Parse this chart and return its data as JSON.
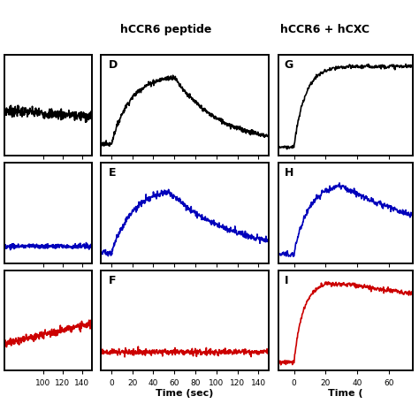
{
  "title_col1": "hCCR6 peptide",
  "title_col2": "hCCR6 + hCXC",
  "colors": {
    "row1": "#000000",
    "row2": "#0000bb",
    "row3": "#cc0000"
  },
  "xlabel_mid": "Time (sec)",
  "xlabel_right": "Time (",
  "background": "#ffffff",
  "linewidth": 1.2
}
